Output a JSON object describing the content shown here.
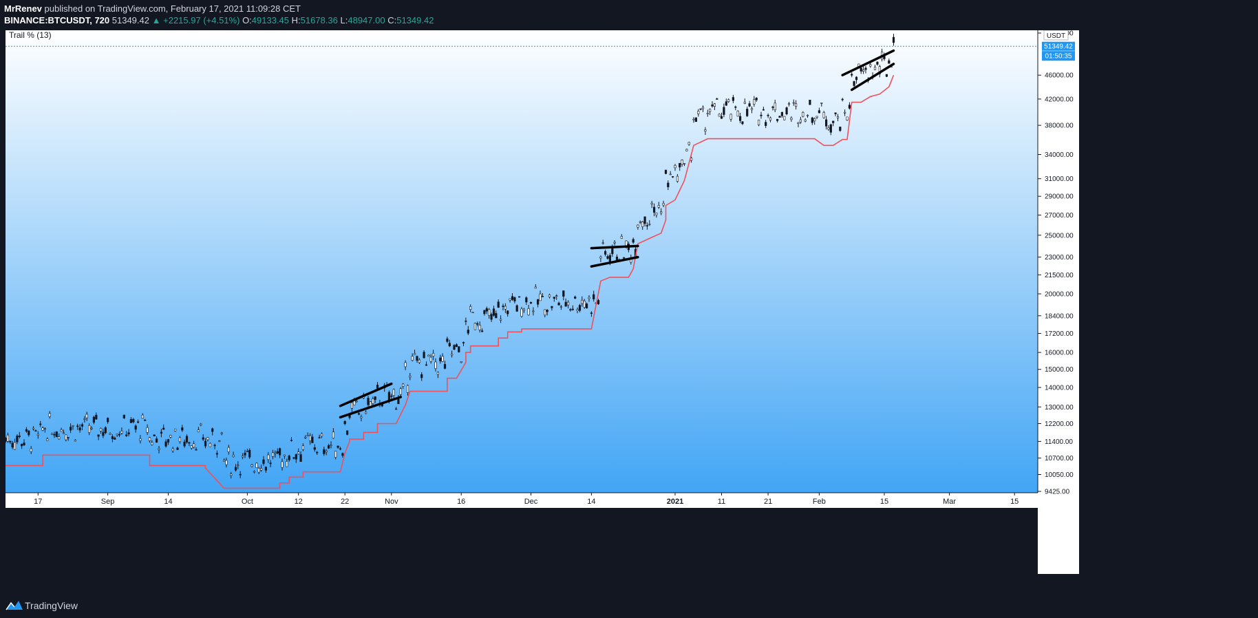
{
  "header": {
    "author": "MrRenev",
    "published_text": "published on TradingView.com, February 17, 2021 11:09:28 CET",
    "symbol": "BINANCE:BTCUSDT, 720",
    "last": "51349.42",
    "change": "+2215.97 (+4.51%)",
    "o_label": "O:",
    "o": "49133.45",
    "h_label": "H:",
    "h": "51678.36",
    "l_label": "L:",
    "l": "48947.00",
    "c_label": "C:",
    "c": "51349.42"
  },
  "indicator_label": "Trail % (13)",
  "price_axis": {
    "currency": "USDT",
    "ticks": [
      "54000.00",
      "46000.00",
      "42000.00",
      "38000.00",
      "34000.00",
      "31000.00",
      "29000.00",
      "27000.00",
      "25000.00",
      "23000.00",
      "21500.00",
      "20000.00",
      "18400.00",
      "17200.00",
      "16000.00",
      "15000.00",
      "14000.00",
      "13000.00",
      "12200.00",
      "11400.00",
      "10700.00",
      "10050.00",
      "9425.00"
    ],
    "last_price_label": "51349.42",
    "countdown_label": "01:50:35"
  },
  "time_axis": {
    "ticks": [
      "17",
      "Sep",
      "14",
      "Oct",
      "12",
      "22",
      "Nov",
      "16",
      "Dec",
      "14",
      "2021",
      "11",
      "21",
      "Feb",
      "15",
      "Mar",
      "15"
    ]
  },
  "footer": {
    "brand": "TradingView"
  },
  "colors": {
    "trail": "#f0505a",
    "candle": "#131722",
    "bg_top": "#ffffff",
    "bg_bottom": "#42a5f5",
    "accent": "#2196f3"
  },
  "chart_data": {
    "type": "line",
    "title": "BINANCE:BTCUSDT, 720",
    "y_scale": "log",
    "ylim": [
      9425,
      54000
    ],
    "xlim": [
      "2020-08-10",
      "2021-03-20"
    ],
    "grid": false,
    "legend": "top-left",
    "series": [
      {
        "name": "Trail % (13)",
        "x": [
          "2020-08-10",
          "2020-08-18",
          "2020-08-18",
          "2020-09-07",
          "2020-09-10",
          "2020-09-10",
          "2020-09-22",
          "2020-09-22",
          "2020-09-26",
          "2020-10-08",
          "2020-10-08",
          "2020-10-10",
          "2020-10-10",
          "2020-10-13",
          "2020-10-13",
          "2020-10-21",
          "2020-10-22",
          "2020-10-23",
          "2020-10-23",
          "2020-10-26",
          "2020-10-26",
          "2020-10-29",
          "2020-10-29",
          "2020-11-02",
          "2020-11-04",
          "2020-11-05",
          "2020-11-05",
          "2020-11-13",
          "2020-11-13",
          "2020-11-15",
          "2020-11-17",
          "2020-11-17",
          "2020-11-18",
          "2020-11-18",
          "2020-11-24",
          "2020-11-24",
          "2020-11-26",
          "2020-11-26",
          "2020-11-29",
          "2020-11-29",
          "2020-12-14",
          "2020-12-16",
          "2020-12-16",
          "2020-12-18",
          "2020-12-18",
          "2020-12-22",
          "2020-12-23",
          "2020-12-24",
          "2020-12-24",
          "2020-12-27",
          "2020-12-29",
          "2020-12-30",
          "2020-12-30",
          "2021-01-01",
          "2021-01-03",
          "2021-01-05",
          "2021-01-08",
          "2021-01-30",
          "2021-01-31",
          "2021-02-02",
          "2021-02-04",
          "2021-02-06",
          "2021-02-07",
          "2021-02-08",
          "2021-02-10",
          "2021-02-12",
          "2021-02-14",
          "2021-02-16",
          "2021-02-17"
        ],
        "values": [
          10400,
          10400,
          10820,
          10820,
          10820,
          10400,
          10400,
          10300,
          9540,
          9540,
          9730,
          9730,
          9950,
          9950,
          10150,
          10150,
          10900,
          11400,
          11500,
          11500,
          11800,
          11800,
          12200,
          12200,
          13100,
          13800,
          13800,
          13800,
          14500,
          14500,
          15400,
          16000,
          16000,
          16400,
          16400,
          16900,
          16900,
          17300,
          17300,
          17500,
          17500,
          21000,
          21000,
          21300,
          21300,
          21300,
          22000,
          24200,
          24200,
          24800,
          25200,
          26500,
          28000,
          28600,
          30800,
          35200,
          36100,
          36100,
          36100,
          35200,
          35200,
          36000,
          36000,
          41500,
          41500,
          42400,
          42800,
          44000,
          46000
        ]
      }
    ],
    "channels": [
      {
        "upper": [
          [
            "2020-10-21",
            13050
          ],
          [
            "2020-11-01",
            14200
          ]
        ],
        "lower": [
          [
            "2020-10-21",
            12500
          ],
          [
            "2020-11-03",
            13500
          ]
        ]
      },
      {
        "upper": [
          [
            "2020-12-14",
            23800
          ],
          [
            "2020-12-24",
            24000
          ]
        ],
        "lower": [
          [
            "2020-12-14",
            22200
          ],
          [
            "2020-12-24",
            23000
          ]
        ]
      },
      {
        "upper": [
          [
            "2021-02-06",
            46000
          ],
          [
            "2021-02-17",
            50500
          ]
        ],
        "lower": [
          [
            "2021-02-08",
            43500
          ],
          [
            "2021-02-17",
            48000
          ]
        ]
      }
    ]
  }
}
